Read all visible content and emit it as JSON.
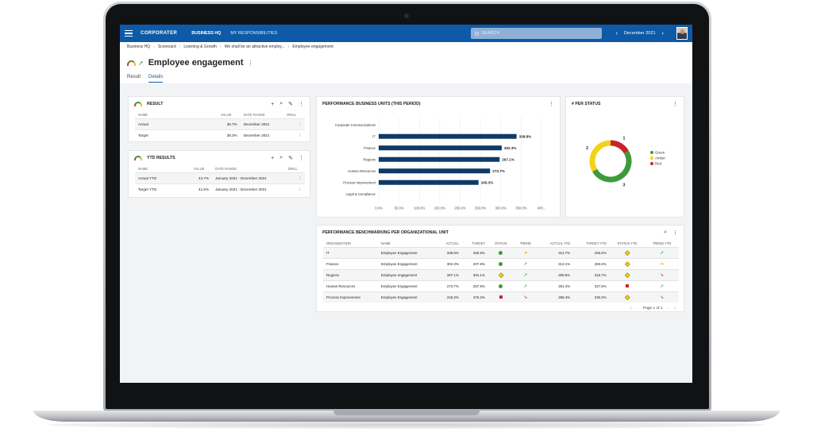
{
  "header": {
    "brand": "CORPORATER",
    "nav": [
      "BUSINESS HQ",
      "MY RESPONSIBILITIES"
    ],
    "search_placeholder": "SEARCH",
    "period": "December 2021",
    "period_prev": "‹",
    "period_next": "›"
  },
  "breadcrumb": [
    "Business HQ",
    "Scorecard",
    "Learning & Growth",
    "We shall be an attractive employ...",
    "Employee engagement"
  ],
  "page": {
    "title": "Employee engagement",
    "tabs": [
      "Result",
      "Details"
    ],
    "active_tab": "Details"
  },
  "result_panel": {
    "title": "RESULT",
    "columns": [
      "NAME",
      "VALUE",
      "DATE RANGE",
      "DRILL"
    ],
    "rows": [
      {
        "name": "Actual",
        "value": "36.7%",
        "date": "December 2021"
      },
      {
        "name": "Target",
        "value": "38.3%",
        "date": "December 2021"
      }
    ]
  },
  "ytd_panel": {
    "title": "YTD RESULTS",
    "columns": [
      "NAME",
      "VALUE",
      "DATE RANGE",
      "DRILL"
    ],
    "rows": [
      {
        "name": "Actual YTD",
        "value": "43.7%",
        "date": "January 2021 - December 2021"
      },
      {
        "name": "Target YTD",
        "value": "41.5%",
        "date": "January 2021 - December 2021"
      }
    ]
  },
  "perf_panel": {
    "title": "PERFORMANCE BUSINESS UNITS (THIS PERIOD)"
  },
  "status_panel": {
    "title": "# PER STATUS"
  },
  "chart_data": [
    {
      "type": "bar",
      "orientation": "horizontal",
      "categories": [
        "Corporate Communications",
        "IT",
        "Finance",
        "Regions",
        "Human Resources",
        "Process Improvement",
        "Legal & Compliance"
      ],
      "values": [
        null,
        338.8,
        302.3,
        297.1,
        273.7,
        245.3,
        null
      ],
      "data_labels": [
        "",
        "338.8%",
        "302.3%",
        "297.1%",
        "273.7%",
        "245.3%",
        ""
      ],
      "x_ticks": [
        "0.0%",
        "50.0%",
        "100.0%",
        "150.0%",
        "200.0%",
        "250.0%",
        "300.0%",
        "350.0%",
        "400..."
      ],
      "xlim": [
        0,
        400
      ],
      "color": "#0d3b66",
      "grid": true
    },
    {
      "type": "pie",
      "donut": true,
      "categories": [
        "Green",
        "Amber",
        "Red"
      ],
      "values": [
        3,
        2,
        1
      ],
      "value_labels": [
        "3",
        "2",
        "1"
      ],
      "colors": [
        "#3d9b3d",
        "#f2d21b",
        "#c7242a"
      ],
      "legend": "right"
    }
  ],
  "bench_panel": {
    "title": "PERFORMANCE BENCHMARKING PER ORGANIZATIONAL UNIT",
    "columns": [
      "ORGANIZATION",
      "NAME",
      "ACTUAL",
      "TARGET",
      "STATUS",
      "TREND",
      "ACTUAL YTD",
      "TARGET YTD",
      "STATUS YTD",
      "TREND YTD"
    ],
    "rows": [
      {
        "org": "IT",
        "name": "Employee Engagement",
        "actual": "338.8%",
        "target": "269.5%",
        "status": "green",
        "trend": "right",
        "actual_ytd": "314.7%",
        "target_ytd": "255.6%",
        "status_ytd": "amber",
        "trend_ytd": "up"
      },
      {
        "org": "Finance",
        "name": "Employee Engagement",
        "actual": "302.3%",
        "target": "207.5%",
        "status": "green",
        "trend": "up",
        "actual_ytd": "313.1%",
        "target_ytd": "260.6%",
        "status_ytd": "amber",
        "trend_ytd": "right"
      },
      {
        "org": "Regions",
        "name": "Employee engagement",
        "actual": "297.1%",
        "target": "304.1%",
        "status": "amber",
        "trend": "up",
        "actual_ytd": "299.8%",
        "target_ytd": "315.7%",
        "status_ytd": "amber",
        "trend_ytd": "down"
      },
      {
        "org": "Human Resources",
        "name": "Employee Engagement",
        "actual": "273.7%",
        "target": "257.5%",
        "status": "green",
        "trend": "up",
        "actual_ytd": "291.4%",
        "target_ytd": "327.8%",
        "status_ytd": "red",
        "trend_ytd": "up"
      },
      {
        "org": "Process Improvement",
        "name": "Employee Engagement",
        "actual": "245.3%",
        "target": "375.2%",
        "status": "red",
        "trend": "down",
        "actual_ytd": "288.4%",
        "target_ytd": "330.3%",
        "status_ytd": "amber",
        "trend_ytd": "down"
      }
    ],
    "pager": "Page 1 of 1"
  },
  "colors": {
    "header_blue": "#0f5aa6",
    "bar_navy": "#0d3b66",
    "green": "#3d9b3d",
    "amber": "#f2d21b",
    "red": "#c7242a"
  }
}
